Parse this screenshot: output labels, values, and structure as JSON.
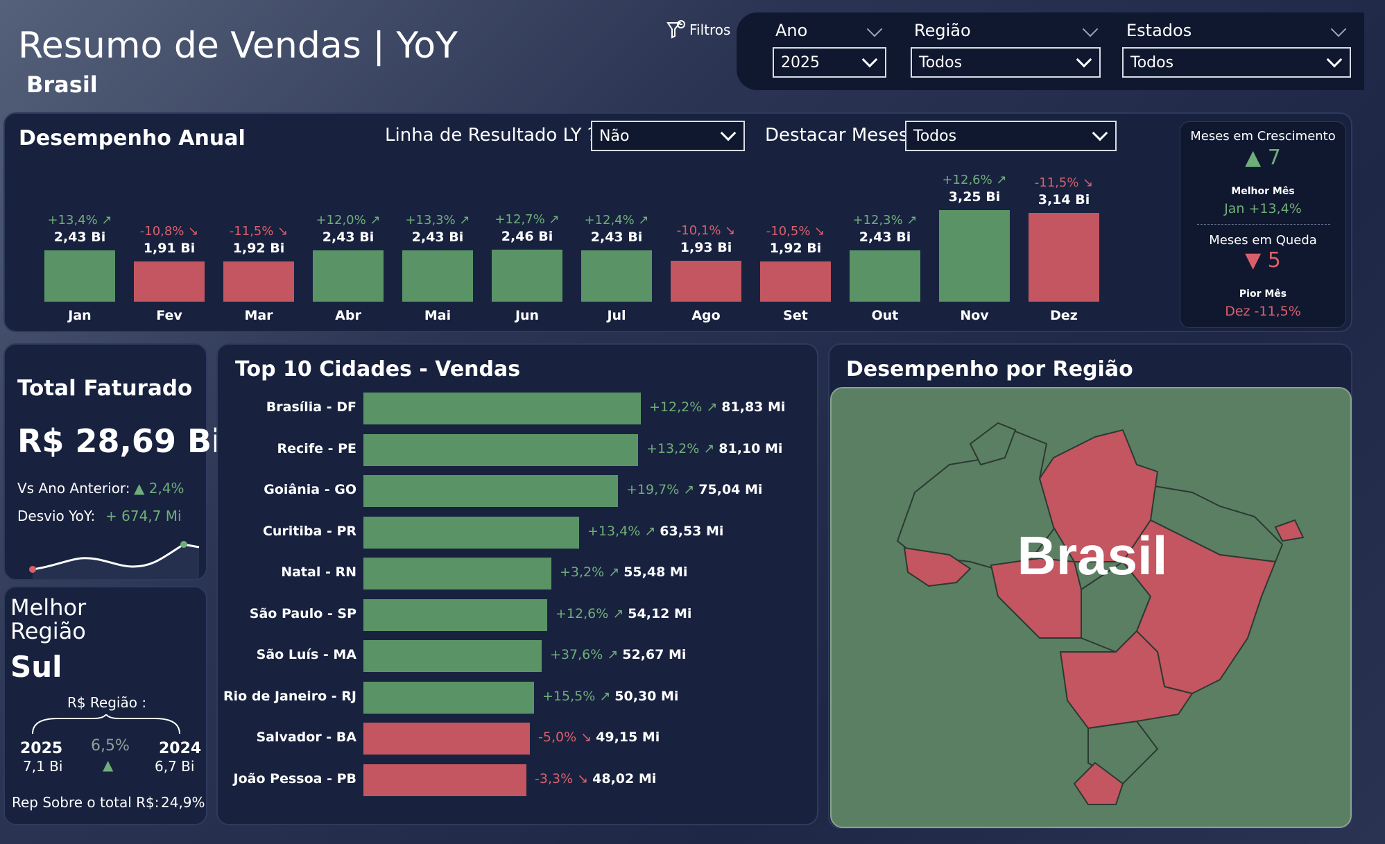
{
  "header": {
    "title": "Resumo de Vendas | YoY",
    "subtitle": "Brasil",
    "filters_label": "Filtros"
  },
  "filters": {
    "ano": {
      "label": "Ano",
      "value": "2025"
    },
    "regiao": {
      "label": "Região",
      "value": "Todos"
    },
    "estados": {
      "label": "Estados",
      "value": "Todos"
    }
  },
  "annual": {
    "title": "Desempenho Anual",
    "ly_label": "Linha de Resultado LY ?",
    "ly_value": "Não",
    "highlight_label": "Destacar Meses:",
    "highlight_value": "Todos",
    "months": [
      {
        "label": "Jan",
        "value": 2.43,
        "value_text": "2,43 Bi",
        "pct": "+13,4% ↗",
        "up": true
      },
      {
        "label": "Fev",
        "value": 1.91,
        "value_text": "1,91 Bi",
        "pct": "-10,8% ↘",
        "up": false
      },
      {
        "label": "Mar",
        "value": 1.92,
        "value_text": "1,92 Bi",
        "pct": "-11,5% ↘",
        "up": false
      },
      {
        "label": "Abr",
        "value": 2.43,
        "value_text": "2,43 Bi",
        "pct": "+12,0% ↗",
        "up": true
      },
      {
        "label": "Mai",
        "value": 2.43,
        "value_text": "2,43 Bi",
        "pct": "+13,3% ↗",
        "up": true
      },
      {
        "label": "Jun",
        "value": 2.46,
        "value_text": "2,46 Bi",
        "pct": "+12,7% ↗",
        "up": true
      },
      {
        "label": "Jul",
        "value": 2.43,
        "value_text": "2,43 Bi",
        "pct": "+12,4% ↗",
        "up": true
      },
      {
        "label": "Ago",
        "value": 1.93,
        "value_text": "1,93 Bi",
        "pct": "-10,1% ↘",
        "up": false
      },
      {
        "label": "Set",
        "value": 1.92,
        "value_text": "1,92 Bi",
        "pct": "-10,5% ↘",
        "up": false
      },
      {
        "label": "Out",
        "value": 2.43,
        "value_text": "2,43 Bi",
        "pct": "+12,3% ↗",
        "up": true
      },
      {
        "label": "Nov",
        "value": 3.25,
        "value_text": "3,25 Bi",
        "pct": "+12,6% ↗",
        "up": true
      },
      {
        "label": "Dez",
        "value": 3.14,
        "value_text": "3,14 Bi",
        "pct": "-11,5% ↘",
        "up": false
      }
    ]
  },
  "growth_card": {
    "growth_title": "Meses em Crescimento",
    "growth_count": "▲ 7",
    "best_label": "Melhor Mês",
    "best_value": "Jan +13,4%",
    "fall_title": "Meses em Queda",
    "fall_count": "▼ 5",
    "worst_label": "Pior Mês",
    "worst_value": "Dez -11,5%"
  },
  "total": {
    "title": "Total Faturado",
    "value": "R$ 28,69 Bi",
    "vs_label": "Vs Ano Anterior:",
    "vs_value": "▲ 2,4%",
    "desvio_label": "Desvio YoY:",
    "desvio_value": "+ 674,7 Mi"
  },
  "best_region": {
    "title_line1": "Melhor",
    "title_line2": "Região",
    "name": "Sul",
    "rs_label": "R$ Região :",
    "year_current": "2025",
    "value_current": "7,1 Bi",
    "pct": "6,5%",
    "year_previous": "2024",
    "value_previous": "6,7 Bi",
    "rep_label": "Rep Sobre o total R$:",
    "rep_value": "24,9%"
  },
  "cities": {
    "title": "Top 10 Cidades - Vendas",
    "items": [
      {
        "name": "Brasília - DF",
        "value": 81.83,
        "value_text": "81,83 Mi",
        "pct": "+12,2% ↗",
        "up": true
      },
      {
        "name": "Recife - PE",
        "value": 81.1,
        "value_text": "81,10 Mi",
        "pct": "+13,2% ↗",
        "up": true
      },
      {
        "name": "Goiânia - GO",
        "value": 75.04,
        "value_text": "75,04 Mi",
        "pct": "+19,7% ↗",
        "up": true
      },
      {
        "name": "Curitiba - PR",
        "value": 63.53,
        "value_text": "63,53 Mi",
        "pct": "+13,4% ↗",
        "up": true
      },
      {
        "name": "Natal - RN",
        "value": 55.48,
        "value_text": "55,48 Mi",
        "pct": "+3,2% ↗",
        "up": true
      },
      {
        "name": "São Paulo - SP",
        "value": 54.12,
        "value_text": "54,12 Mi",
        "pct": "+12,6% ↗",
        "up": true
      },
      {
        "name": "São Luís - MA",
        "value": 52.67,
        "value_text": "52,67 Mi",
        "pct": "+37,6% ↗",
        "up": true
      },
      {
        "name": "Rio de Janeiro - RJ",
        "value": 50.3,
        "value_text": "50,30 Mi",
        "pct": "+15,5% ↗",
        "up": true
      },
      {
        "name": "Salvador - BA",
        "value": 49.15,
        "value_text": "49,15 Mi",
        "pct": "-5,0% ↘",
        "up": false
      },
      {
        "name": "João Pessoa - PB",
        "value": 48.02,
        "value_text": "48,02 Mi",
        "pct": "-3,3% ↘",
        "up": false
      }
    ]
  },
  "region": {
    "title": "Desempenho por Região",
    "map_label": "Brasil"
  },
  "colors": {
    "positive": "#5a9466",
    "negative": "#c35660",
    "panel": "#18223f"
  }
}
